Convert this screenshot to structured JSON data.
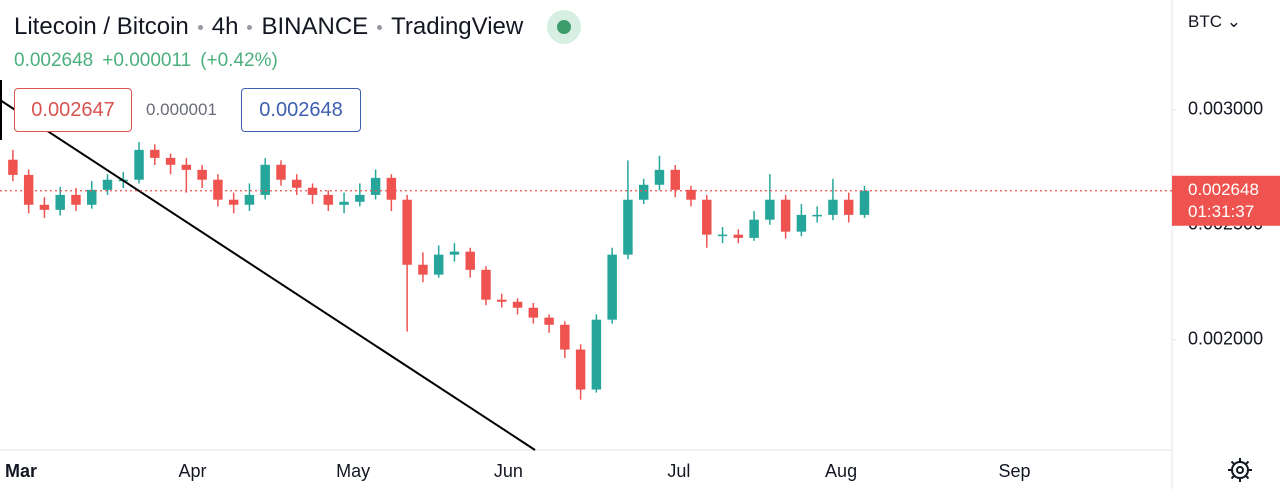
{
  "header": {
    "symbol": "Litecoin / Bitcoin",
    "interval": "4h",
    "exchange": "BINANCE",
    "source": "TradingView",
    "price": "0.002648",
    "change": "+0.000011",
    "change_percent": "(+0.42%)",
    "bid": "0.002647",
    "spread": "0.000001",
    "ask": "0.002648",
    "currency": "BTC"
  },
  "chart_data": {
    "type": "candlestick",
    "categories": [
      "Mar",
      null,
      null,
      null,
      null,
      null,
      null,
      null,
      null,
      null,
      null,
      "Apr",
      null,
      null,
      null,
      null,
      null,
      null,
      null,
      null,
      null,
      "May",
      null,
      null,
      null,
      null,
      null,
      null,
      null,
      null,
      null,
      "Jun",
      null,
      null,
      null,
      null,
      null,
      null,
      null,
      null,
      null,
      null,
      "Jul",
      null,
      null,
      null,
      null,
      null,
      null,
      null,
      null,
      null,
      "Aug",
      null,
      null,
      null,
      null,
      null,
      null,
      null,
      null,
      null,
      null,
      "Sep",
      null,
      null,
      null,
      null,
      null,
      null,
      null,
      null,
      null,
      null
    ],
    "open": [
      0.002783,
      0.002717,
      0.002587,
      0.002565,
      0.00263,
      0.002587,
      0.002652,
      0.002696,
      0.002696,
      0.002826,
      0.002791,
      0.002761,
      0.002739,
      0.002696,
      0.002609,
      0.002587,
      0.00263,
      0.002761,
      0.002696,
      0.002661,
      0.00263,
      0.002587,
      0.0026,
      0.00263,
      0.002704,
      0.002609,
      0.002326,
      0.002283,
      0.00237,
      0.002383,
      0.002304,
      0.002174,
      0.002165,
      0.002139,
      0.002096,
      0.002065,
      0.001957,
      0.001783,
      0.002087,
      0.00237,
      0.002609,
      0.002674,
      0.002739,
      0.002652,
      0.002609,
      0.002457,
      0.002457,
      0.002443,
      0.002522,
      0.002609,
      0.00247,
      0.002543,
      0.002543,
      0.002609,
      0.002543,
      null,
      null,
      null,
      null,
      null,
      null,
      null,
      null,
      null,
      null,
      null,
      null,
      null,
      null,
      null,
      null,
      null,
      null,
      null
    ],
    "high": [
      0.002826,
      0.00274,
      0.00262,
      0.002665,
      0.00266,
      0.00269,
      0.00272,
      0.00273,
      0.00286,
      0.00285,
      0.00281,
      0.00279,
      0.00276,
      0.00272,
      0.00264,
      0.00268,
      0.00279,
      0.00278,
      0.00272,
      0.00268,
      0.00265,
      0.00264,
      0.00268,
      0.00274,
      0.00272,
      0.00263,
      0.00238,
      0.00241,
      0.00242,
      0.0024,
      0.00232,
      0.0022,
      0.00218,
      0.00216,
      0.00211,
      0.00208,
      0.00198,
      0.00211,
      0.0024,
      0.00278,
      0.0027,
      0.0028,
      0.00276,
      0.00267,
      0.00263,
      0.00249,
      0.00248,
      0.00256,
      0.00272,
      0.00263,
      0.00259,
      0.00258,
      0.0027,
      0.00264,
      0.00267,
      null,
      null,
      null,
      null,
      null,
      null,
      null,
      null,
      null,
      null,
      null,
      null,
      null,
      null,
      null,
      null,
      null,
      null,
      null
    ],
    "low": [
      0.00269,
      0.00255,
      0.00253,
      0.00254,
      0.00256,
      0.00257,
      0.00263,
      0.00266,
      0.00268,
      0.00276,
      0.00272,
      0.00264,
      0.00266,
      0.00258,
      0.00255,
      0.00256,
      0.00261,
      0.00267,
      0.00263,
      0.00259,
      0.00256,
      0.00255,
      0.00258,
      0.00261,
      0.00256,
      0.002035,
      0.00225,
      0.00227,
      0.00234,
      0.00227,
      0.00215,
      0.00214,
      0.00211,
      0.00207,
      0.00203,
      0.00192,
      0.001739,
      0.00177,
      0.00207,
      0.00235,
      0.00259,
      0.00265,
      0.00262,
      0.00258,
      0.0024,
      0.00242,
      0.00242,
      0.00243,
      0.0025,
      0.00244,
      0.00245,
      0.00251,
      0.00252,
      0.00251,
      0.00253,
      null,
      null,
      null,
      null,
      null,
      null,
      null,
      null,
      null,
      null,
      null,
      null,
      null,
      null,
      null,
      null,
      null,
      null,
      null
    ],
    "close": [
      0.002717,
      0.002587,
      0.002565,
      0.00263,
      0.002587,
      0.002652,
      0.002696,
      0.002696,
      0.002826,
      0.002791,
      0.002761,
      0.002739,
      0.002696,
      0.002609,
      0.002587,
      0.00263,
      0.002761,
      0.002696,
      0.002661,
      0.00263,
      0.002587,
      0.0026,
      0.00263,
      0.002704,
      0.002609,
      0.002326,
      0.002283,
      0.00237,
      0.002383,
      0.002304,
      0.002174,
      0.002165,
      0.002139,
      0.002096,
      0.002065,
      0.001957,
      0.001783,
      0.002087,
      0.00237,
      0.002609,
      0.002674,
      0.002739,
      0.002652,
      0.002609,
      0.002457,
      0.002457,
      0.002443,
      0.002522,
      0.002609,
      0.00247,
      0.002543,
      0.002543,
      0.002609,
      0.002543,
      0.002648,
      null,
      null,
      null,
      null,
      null,
      null,
      null,
      null,
      null,
      null,
      null,
      null,
      null,
      null,
      null,
      null,
      null,
      null,
      null
    ],
    "up_color": "#26a69a",
    "down_color": "#ef5350",
    "ylim": [
      0.00152,
      0.003478
    ],
    "yticks": [
      {
        "value": 0.002,
        "label": "0.002000"
      },
      {
        "value": 0.0025,
        "label": "0.002500"
      },
      {
        "value": 0.003,
        "label": "0.003000"
      }
    ],
    "last_price": {
      "value": 0.002648,
      "label": "0.002648",
      "countdown": "01:31:37",
      "color": "#ef5350"
    }
  }
}
